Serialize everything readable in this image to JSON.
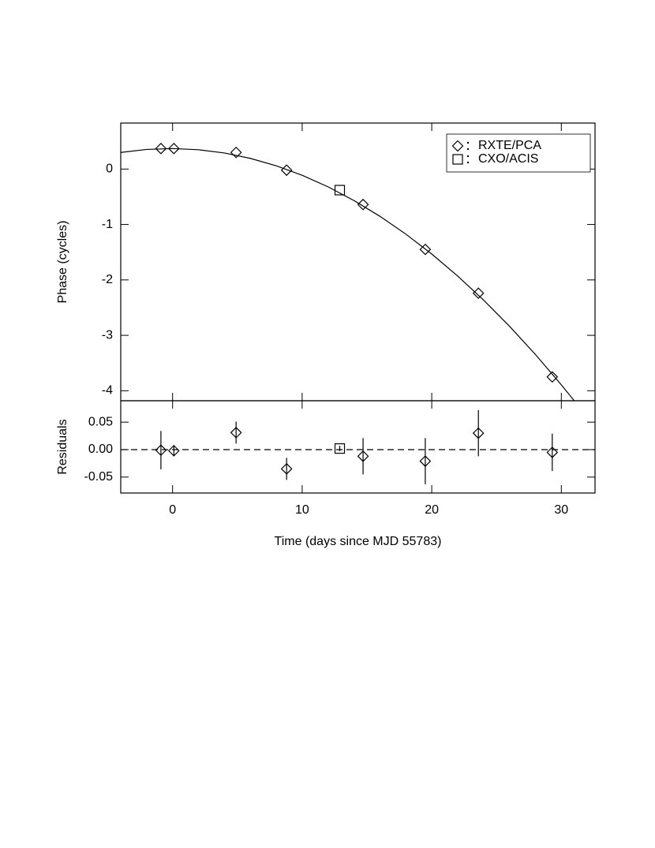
{
  "chart_data": [
    {
      "type": "scatter",
      "ylabel": "Phase (cycles)",
      "xlim": [
        -4,
        32.6
      ],
      "xticks": [
        0,
        10,
        20,
        30
      ],
      "xticklabels": false,
      "ylim": [
        -4.18,
        0.83
      ],
      "yticks": [
        0,
        -1,
        -2,
        -3,
        -4
      ],
      "legend": "upper right",
      "series": [
        {
          "name": "RXTE/PCA",
          "marker": "diamond",
          "color": "#000000",
          "x": [
            -0.9,
            0.1,
            4.9,
            8.8,
            14.7,
            19.5,
            23.6,
            29.3
          ],
          "values": [
            0.37,
            0.37,
            0.3,
            -0.02,
            -0.64,
            -1.45,
            -2.24,
            -3.75
          ]
        },
        {
          "name": "CXO/ACIS",
          "marker": "square",
          "color": "#000000",
          "x": [
            12.9
          ],
          "values": [
            -0.38
          ]
        },
        {
          "marker": "line",
          "color": "#000000",
          "x": [
            -4,
            -2,
            0,
            2,
            4,
            6,
            8,
            10,
            12,
            14,
            16,
            18,
            20,
            22,
            24,
            26,
            28,
            30,
            31
          ],
          "values": [
            0.3,
            0.354,
            0.37,
            0.349,
            0.29,
            0.193,
            0.059,
            -0.112,
            -0.321,
            -0.568,
            -0.852,
            -1.174,
            -1.533,
            -1.93,
            -2.364,
            -2.836,
            -3.346,
            -3.893,
            -4.181
          ]
        }
      ]
    },
    {
      "type": "scatter",
      "ylabel": "Residuals",
      "xlabel": "Time (days since MJD 55783)",
      "xlim": [
        -4,
        32.6
      ],
      "xticks": [
        0,
        10,
        20,
        30
      ],
      "xticklabels": true,
      "ylim": [
        -0.079,
        0.089
      ],
      "yticks": [
        0.05,
        {
          "value": 0,
          "label": "0.00"
        },
        -0.05
      ],
      "hline": 0,
      "series": [
        {
          "marker": "diamond",
          "color": "#000000",
          "x": [
            -0.9,
            0.1,
            4.9,
            8.8,
            14.7,
            19.5,
            23.6,
            29.3
          ],
          "values": [
            -0.001,
            -0.002,
            0.031,
            -0.035,
            -0.012,
            -0.021,
            0.03,
            -0.005
          ],
          "errors": [
            0.035,
            0.01,
            0.02,
            0.02,
            0.033,
            0.042,
            0.042,
            0.034
          ]
        },
        {
          "marker": "square",
          "color": "#000000",
          "x": [
            12.9
          ],
          "values": [
            0.002
          ],
          "errors": [
            0.005
          ]
        }
      ]
    }
  ]
}
